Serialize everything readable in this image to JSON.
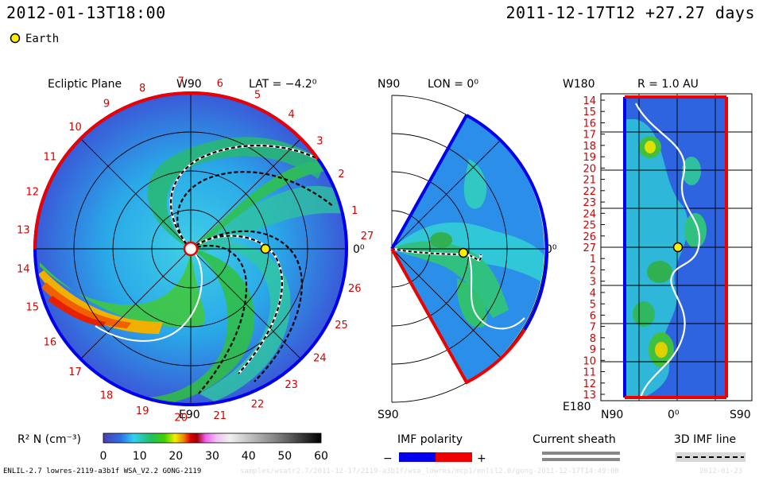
{
  "header": {
    "time": "2012-01-13T18:00",
    "run": "2011-12-17T12 +27.27 days"
  },
  "legend_earth": "Earth",
  "colors": {
    "earth": "#ffee00",
    "imf_away": "#0000ee",
    "imf_toward": "#ee0000",
    "sheath": "#888888"
  },
  "panels": {
    "ecliptic": {
      "title": "Ecliptic Plane",
      "top_label": "W90",
      "bottom_label": "E90",
      "right_label": "0⁰",
      "lat_label": "LAT = −4.2⁰",
      "rotation_labels": [
        "27",
        "1",
        "2",
        "3",
        "4",
        "5",
        "6",
        "7",
        "8",
        "9",
        "10",
        "11",
        "12",
        "13",
        "14",
        "15",
        "16",
        "17",
        "18",
        "19",
        "20",
        "21",
        "22",
        "23",
        "24",
        "25",
        "26"
      ]
    },
    "meridional": {
      "lon_label": "LON = 0⁰",
      "top_label": "N90",
      "bottom_label": "S90",
      "right_label": "0⁰"
    },
    "radial": {
      "title": "R = 1.0 AU",
      "top_label": "W180",
      "bottom_label": "E180",
      "x_labels": [
        "N90",
        "0⁰",
        "S90"
      ],
      "y_labels": [
        "14",
        "15",
        "16",
        "17",
        "18",
        "19",
        "20",
        "21",
        "22",
        "23",
        "24",
        "25",
        "26",
        "27",
        "1",
        "2",
        "3",
        "4",
        "5",
        "6",
        "7",
        "8",
        "9",
        "10",
        "11",
        "12",
        "13"
      ]
    }
  },
  "colorbar": {
    "label": "R² N (cm⁻³)",
    "ticks": [
      "0",
      "10",
      "20",
      "30",
      "40",
      "50",
      "60"
    ],
    "range": [
      0,
      60
    ]
  },
  "imf_legend": {
    "title": "IMF polarity",
    "minus": "−",
    "plus": "+"
  },
  "sheath_legend": {
    "title": "Current sheath"
  },
  "imf_line_legend": {
    "title": "3D IMF line"
  },
  "footer": {
    "model": "ENLIL-2.7 lowres-2119-a3b1f WSA_V2.2 GONG-2119",
    "path": "samples/wsatr2.7/2011-12-17/2119-a3b1f/wsa_lowres/mcp1/enlil2.0/gong-2011-12-17T14:49:00",
    "date": "2012-01-23"
  },
  "chart_data": [
    {
      "type": "heatmap",
      "title": "Ecliptic Plane",
      "subtitle": "LAT = −4.2⁰",
      "quantity": "R² N (cm⁻³)",
      "zlim": [
        0,
        60
      ],
      "earth": {
        "angle_deg": 0,
        "r_au": 1.0
      },
      "dense_stream_peak": 25
    },
    {
      "type": "heatmap",
      "subtitle": "LON = 0⁰",
      "quantity": "R² N (cm⁻³)",
      "zlim": [
        0,
        60
      ],
      "earth": {
        "angle_deg": 0,
        "r_au": 1.0
      }
    },
    {
      "type": "heatmap",
      "title": "R = 1.0 AU",
      "quantity": "R² N (cm⁻³)",
      "zlim": [
        0,
        60
      ],
      "earth": {
        "rotation": "27",
        "lat": "0⁰"
      }
    }
  ]
}
